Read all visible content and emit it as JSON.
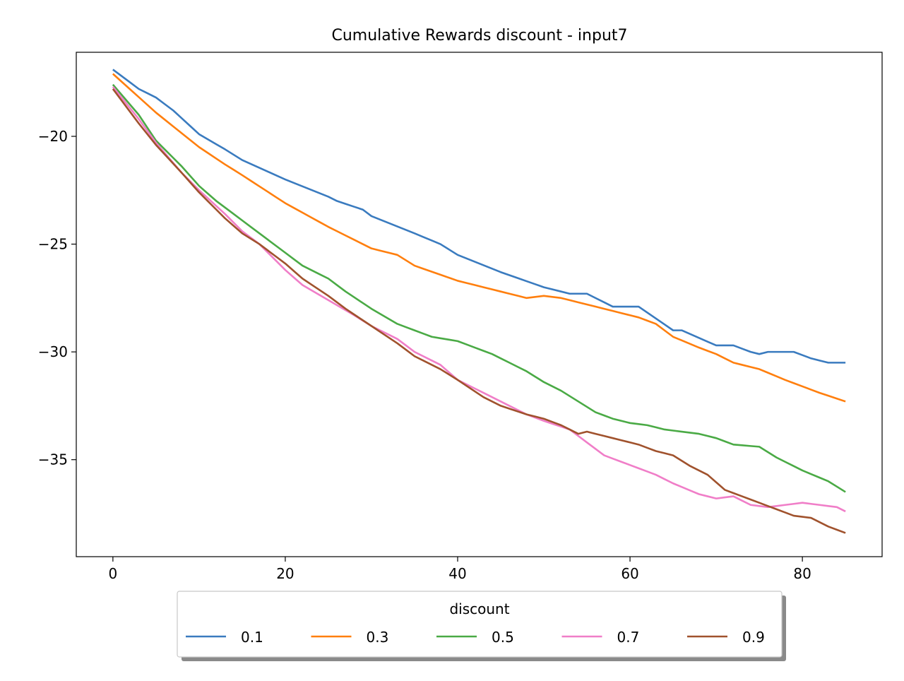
{
  "chart_data": {
    "type": "line",
    "title": "Cumulative Rewards discount - input7",
    "xlabel": "",
    "ylabel": "",
    "xlim": [
      -4.25,
      89.25
    ],
    "ylim": [
      -39.5,
      -16.1
    ],
    "xticks": [
      0,
      20,
      40,
      60,
      80
    ],
    "yticks": [
      -20,
      -25,
      -30,
      -35
    ],
    "grid": false,
    "legend": {
      "title": "discount",
      "placement": "bottom-center, outside plot",
      "columns": 5
    },
    "x": {
      "start": 0,
      "end": 85,
      "step": 1
    },
    "series": [
      {
        "name": "0.1",
        "color": "#3a7bbf",
        "anchors": [
          [
            0,
            -16.9
          ],
          [
            3,
            -17.8
          ],
          [
            5,
            -18.2
          ],
          [
            7,
            -18.8
          ],
          [
            10,
            -19.9
          ],
          [
            13,
            -20.6
          ],
          [
            15,
            -21.1
          ],
          [
            20,
            -22.0
          ],
          [
            25,
            -22.8
          ],
          [
            26,
            -23.0
          ],
          [
            29,
            -23.4
          ],
          [
            30,
            -23.7
          ],
          [
            35,
            -24.5
          ],
          [
            38,
            -25.0
          ],
          [
            40,
            -25.5
          ],
          [
            45,
            -26.3
          ],
          [
            50,
            -27.0
          ],
          [
            53,
            -27.3
          ],
          [
            55,
            -27.3
          ],
          [
            57,
            -27.7
          ],
          [
            58,
            -27.9
          ],
          [
            61,
            -27.9
          ],
          [
            65,
            -29.0
          ],
          [
            66,
            -29.0
          ],
          [
            70,
            -29.7
          ],
          [
            72,
            -29.7
          ],
          [
            74,
            -30.0
          ],
          [
            75,
            -30.1
          ],
          [
            76,
            -30.0
          ],
          [
            79,
            -30.0
          ],
          [
            81,
            -30.3
          ],
          [
            83,
            -30.5
          ],
          [
            85,
            -30.5
          ]
        ]
      },
      {
        "name": "0.3",
        "color": "#ff7f0e",
        "anchors": [
          [
            0,
            -17.1
          ],
          [
            5,
            -18.9
          ],
          [
            10,
            -20.5
          ],
          [
            13,
            -21.3
          ],
          [
            15,
            -21.8
          ],
          [
            20,
            -23.1
          ],
          [
            25,
            -24.2
          ],
          [
            30,
            -25.2
          ],
          [
            33,
            -25.5
          ],
          [
            35,
            -26.0
          ],
          [
            40,
            -26.7
          ],
          [
            45,
            -27.2
          ],
          [
            48,
            -27.5
          ],
          [
            50,
            -27.4
          ],
          [
            52,
            -27.5
          ],
          [
            55,
            -27.8
          ],
          [
            57,
            -28.0
          ],
          [
            61,
            -28.4
          ],
          [
            63,
            -28.7
          ],
          [
            65,
            -29.3
          ],
          [
            68,
            -29.8
          ],
          [
            70,
            -30.1
          ],
          [
            72,
            -30.5
          ],
          [
            75,
            -30.8
          ],
          [
            78,
            -31.3
          ],
          [
            80,
            -31.6
          ],
          [
            82,
            -31.9
          ],
          [
            85,
            -32.3
          ]
        ]
      },
      {
        "name": "0.5",
        "color": "#4aaa45",
        "anchors": [
          [
            0,
            -17.6
          ],
          [
            3,
            -19.0
          ],
          [
            5,
            -20.2
          ],
          [
            8,
            -21.4
          ],
          [
            10,
            -22.3
          ],
          [
            12,
            -23.0
          ],
          [
            15,
            -23.9
          ],
          [
            18,
            -24.8
          ],
          [
            20,
            -25.4
          ],
          [
            22,
            -26.0
          ],
          [
            25,
            -26.6
          ],
          [
            27,
            -27.2
          ],
          [
            30,
            -28.0
          ],
          [
            33,
            -28.7
          ],
          [
            35,
            -29.0
          ],
          [
            37,
            -29.3
          ],
          [
            40,
            -29.5
          ],
          [
            42,
            -29.8
          ],
          [
            44,
            -30.1
          ],
          [
            46,
            -30.5
          ],
          [
            48,
            -30.9
          ],
          [
            50,
            -31.4
          ],
          [
            52,
            -31.8
          ],
          [
            54,
            -32.3
          ],
          [
            56,
            -32.8
          ],
          [
            58,
            -33.1
          ],
          [
            60,
            -33.3
          ],
          [
            62,
            -33.4
          ],
          [
            64,
            -33.6
          ],
          [
            66,
            -33.7
          ],
          [
            68,
            -33.8
          ],
          [
            70,
            -34.0
          ],
          [
            72,
            -34.3
          ],
          [
            75,
            -34.4
          ],
          [
            77,
            -34.9
          ],
          [
            80,
            -35.5
          ],
          [
            83,
            -36.0
          ],
          [
            85,
            -36.5
          ]
        ]
      },
      {
        "name": "0.7",
        "color": "#f07ec8",
        "anchors": [
          [
            0,
            -17.7
          ],
          [
            3,
            -19.2
          ],
          [
            5,
            -20.3
          ],
          [
            8,
            -21.7
          ],
          [
            10,
            -22.5
          ],
          [
            13,
            -23.6
          ],
          [
            15,
            -24.4
          ],
          [
            17,
            -25.0
          ],
          [
            20,
            -26.2
          ],
          [
            22,
            -26.9
          ],
          [
            25,
            -27.6
          ],
          [
            28,
            -28.3
          ],
          [
            30,
            -28.8
          ],
          [
            33,
            -29.4
          ],
          [
            35,
            -30.0
          ],
          [
            38,
            -30.6
          ],
          [
            40,
            -31.3
          ],
          [
            43,
            -31.9
          ],
          [
            46,
            -32.5
          ],
          [
            48,
            -32.9
          ],
          [
            50,
            -33.2
          ],
          [
            53,
            -33.6
          ],
          [
            55,
            -34.2
          ],
          [
            57,
            -34.8
          ],
          [
            59,
            -35.1
          ],
          [
            61,
            -35.4
          ],
          [
            63,
            -35.7
          ],
          [
            65,
            -36.1
          ],
          [
            68,
            -36.6
          ],
          [
            70,
            -36.8
          ],
          [
            72,
            -36.7
          ],
          [
            74,
            -37.1
          ],
          [
            76,
            -37.2
          ],
          [
            78,
            -37.1
          ],
          [
            80,
            -37.0
          ],
          [
            82,
            -37.1
          ],
          [
            84,
            -37.2
          ],
          [
            85,
            -37.4
          ]
        ]
      },
      {
        "name": "0.9",
        "color": "#a0522d",
        "anchors": [
          [
            0,
            -17.8
          ],
          [
            3,
            -19.4
          ],
          [
            5,
            -20.4
          ],
          [
            8,
            -21.7
          ],
          [
            10,
            -22.6
          ],
          [
            13,
            -23.8
          ],
          [
            15,
            -24.5
          ],
          [
            17,
            -25.0
          ],
          [
            20,
            -25.9
          ],
          [
            22,
            -26.6
          ],
          [
            25,
            -27.4
          ],
          [
            27,
            -28.0
          ],
          [
            30,
            -28.8
          ],
          [
            33,
            -29.6
          ],
          [
            35,
            -30.2
          ],
          [
            38,
            -30.8
          ],
          [
            40,
            -31.3
          ],
          [
            43,
            -32.1
          ],
          [
            45,
            -32.5
          ],
          [
            48,
            -32.9
          ],
          [
            50,
            -33.1
          ],
          [
            52,
            -33.4
          ],
          [
            54,
            -33.8
          ],
          [
            55,
            -33.7
          ],
          [
            57,
            -33.9
          ],
          [
            59,
            -34.1
          ],
          [
            61,
            -34.3
          ],
          [
            63,
            -34.6
          ],
          [
            65,
            -34.8
          ],
          [
            67,
            -35.3
          ],
          [
            69,
            -35.7
          ],
          [
            71,
            -36.4
          ],
          [
            73,
            -36.7
          ],
          [
            75,
            -37.0
          ],
          [
            77,
            -37.3
          ],
          [
            79,
            -37.6
          ],
          [
            81,
            -37.7
          ],
          [
            83,
            -38.1
          ],
          [
            85,
            -38.4
          ]
        ]
      }
    ]
  }
}
